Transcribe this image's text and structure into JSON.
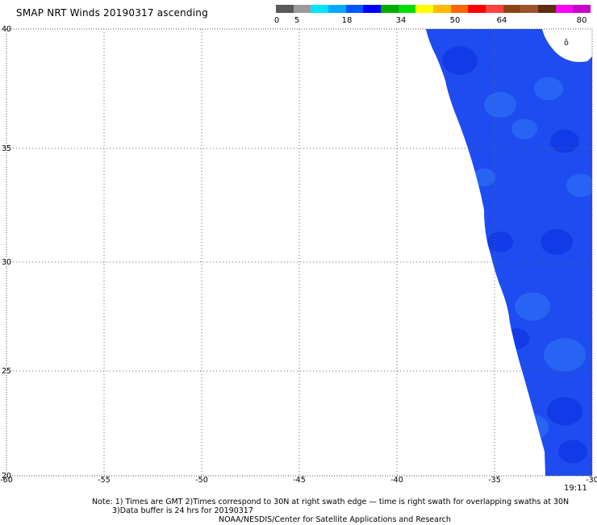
{
  "title": "SMAP NRT Winds 20190317 ascending",
  "colorbar": {
    "labels": [
      "0",
      "5",
      "18",
      "34",
      "50",
      "64",
      "80"
    ],
    "colors": [
      "#5a5a5a",
      "#9a9a9a",
      "#00e5ff",
      "#00aaff",
      "#0055ff",
      "#0000ff",
      "#00aa00",
      "#00dd00",
      "#ffff00",
      "#ffbb00",
      "#ff6600",
      "#ff0000",
      "#ff4040",
      "#8b4513",
      "#a0522d",
      "#5c2e0e",
      "#ff00ff",
      "#cc00cc"
    ]
  },
  "map": {
    "lon_ticks": [
      "-60",
      "-55",
      "-50",
      "-45",
      "-40",
      "-35",
      "-30"
    ],
    "lat_ticks": [
      "40",
      "35",
      "30",
      "25",
      "20"
    ],
    "swath_color": "#1e4cf0",
    "swath_dark": "#0a2ee0",
    "swath_light": "#2f78f8",
    "land_marker": "ô"
  },
  "time_label": "19:11",
  "notes": {
    "line1": "Note: 1) Times are GMT 2)Times correspond to 30N at right swath edge — time is right swath for overlapping swaths at 30N",
    "line2": "3)Data buffer is 24 hrs for 20190317",
    "line3": "NOAA/NESDIS/Center for Satellite Applications and Research"
  }
}
